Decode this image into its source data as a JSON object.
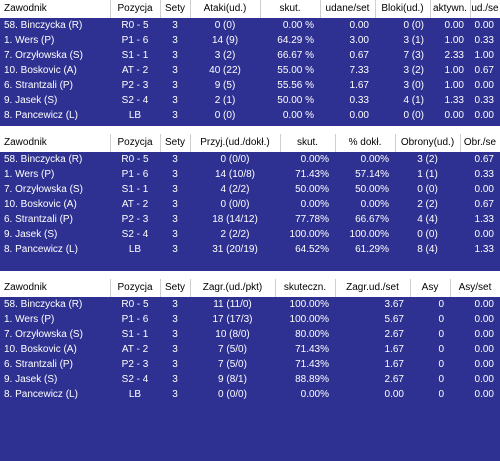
{
  "attack": {
    "headers": [
      "Zawodnik",
      "Pozycja",
      "Sety",
      "Ataki(ud.)",
      "skut.",
      "udane/set",
      "Bloki(ud.)",
      "aktywn.",
      "ud./se"
    ],
    "rows": [
      [
        "58. Binczycka (R)",
        "R0 - 5",
        "3",
        "0 (0)",
        "0.00 %",
        "0.00",
        "0 (0)",
        "0.00",
        "0.00"
      ],
      [
        "1. Wers (P)",
        "P1 - 6",
        "3",
        "14 (9)",
        "64.29 %",
        "3.00",
        "3 (1)",
        "1.00",
        "0.33"
      ],
      [
        "7. Orzyłowska (S)",
        "S1 - 1",
        "3",
        "3 (2)",
        "66.67 %",
        "0.67",
        "7 (3)",
        "2.33",
        "1.00"
      ],
      [
        "10. Boskovic (A)",
        "AT - 2",
        "3",
        "40 (22)",
        "55.00 %",
        "7.33",
        "3 (2)",
        "1.00",
        "0.67"
      ],
      [
        "6. Strantzali (P)",
        "P2 - 3",
        "3",
        "9 (5)",
        "55.56 %",
        "1.67",
        "3 (0)",
        "1.00",
        "0.00"
      ],
      [
        "9. Jasek (S)",
        "S2 - 4",
        "3",
        "2 (1)",
        "50.00 %",
        "0.33",
        "4 (1)",
        "1.33",
        "0.33"
      ],
      [
        "8. Pancewicz (L)",
        "LB",
        "3",
        "0 (0)",
        "0.00 %",
        "0.00",
        "0 (0)",
        "0.00",
        "0.00"
      ]
    ]
  },
  "reception": {
    "headers": [
      "Zawodnik",
      "Pozycja",
      "Sety",
      "Przyj.(ud./dokł.)",
      "skut.",
      "% dokł.",
      "Obrony(ud.)",
      "Obr./se"
    ],
    "rows": [
      [
        "58. Binczycka (R)",
        "R0 - 5",
        "3",
        "0 (0/0)",
        "0.00%",
        "0.00%",
        "3 (2)",
        "0.67"
      ],
      [
        "1. Wers (P)",
        "P1 - 6",
        "3",
        "14 (10/8)",
        "71.43%",
        "57.14%",
        "1 (1)",
        "0.33"
      ],
      [
        "7. Orzyłowska (S)",
        "S1 - 1",
        "3",
        "4 (2/2)",
        "50.00%",
        "50.00%",
        "0 (0)",
        "0.00"
      ],
      [
        "10. Boskovic (A)",
        "AT - 2",
        "3",
        "0 (0/0)",
        "0.00%",
        "0.00%",
        "2 (2)",
        "0.67"
      ],
      [
        "6. Strantzali (P)",
        "P2 - 3",
        "3",
        "18 (14/12)",
        "77.78%",
        "66.67%",
        "4 (4)",
        "1.33"
      ],
      [
        "9. Jasek (S)",
        "S2 - 4",
        "3",
        "2 (2/2)",
        "100.00%",
        "100.00%",
        "0 (0)",
        "0.00"
      ],
      [
        "8. Pancewicz (L)",
        "LB",
        "3",
        "31 (20/19)",
        "64.52%",
        "61.29%",
        "8 (4)",
        "1.33"
      ]
    ]
  },
  "serve": {
    "headers": [
      "Zawodnik",
      "Pozycja",
      "Sety",
      "Zagr.(ud./pkt)",
      "skuteczn.",
      "Zagr.ud./set",
      "Asy",
      "Asy/set"
    ],
    "rows": [
      [
        "58. Binczycka (R)",
        "R0 - 5",
        "3",
        "11 (11/0)",
        "100.00%",
        "3.67",
        "0",
        "0.00"
      ],
      [
        "1. Wers (P)",
        "P1 - 6",
        "3",
        "17 (17/3)",
        "100.00%",
        "5.67",
        "0",
        "0.00"
      ],
      [
        "7. Orzyłowska (S)",
        "S1 - 1",
        "3",
        "10 (8/0)",
        "80.00%",
        "2.67",
        "0",
        "0.00"
      ],
      [
        "10. Boskovic (A)",
        "AT - 2",
        "3",
        "7 (5/0)",
        "71.43%",
        "1.67",
        "0",
        "0.00"
      ],
      [
        "6. Strantzali (P)",
        "P2 - 3",
        "3",
        "7 (5/0)",
        "71.43%",
        "1.67",
        "0",
        "0.00"
      ],
      [
        "9. Jasek (S)",
        "S2 - 4",
        "3",
        "9 (8/1)",
        "88.89%",
        "2.67",
        "0",
        "0.00"
      ],
      [
        "8. Pancewicz (L)",
        "LB",
        "3",
        "0 (0/0)",
        "0.00%",
        "0.00",
        "0",
        "0.00"
      ]
    ]
  }
}
